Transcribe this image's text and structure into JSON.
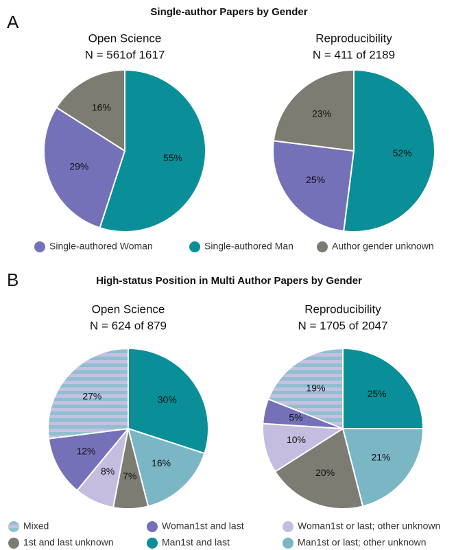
{
  "panels": [
    {
      "label": "A",
      "title": "Single-author Papers by Gender",
      "legend": [
        {
          "name": "Single-authored Woman",
          "color": "#7571b9"
        },
        {
          "name": "Single-authored Man",
          "color": "#0a8f98"
        },
        {
          "name": "Author gender unknown",
          "color": "#7d7c73"
        }
      ],
      "clockwise_order": [
        1,
        0,
        2
      ]
    },
    {
      "label": "B",
      "title": "High-status Position in Multi Author Papers by Gender",
      "legend": [
        {
          "name": "Mixed",
          "pattern": [
            "#8ec0cf",
            "#c6c0e2"
          ]
        },
        {
          "name": "Woman1st and last",
          "color": "#7571b9"
        },
        {
          "name": "Woman1st or last; other unknown",
          "color": "#c4bde0"
        },
        {
          "name": "1st and last unknown",
          "color": "#7d7c73"
        },
        {
          "name": "Man1st and last",
          "color": "#0a8f98"
        },
        {
          "name": "Man1st or last; other unknown",
          "color": "#7ab6c3"
        }
      ],
      "clockwise_order": [
        4,
        5,
        3,
        2,
        1,
        0
      ]
    }
  ],
  "chart_data": [
    {
      "type": "pie",
      "title": "Open Science",
      "subtitle": "N = 561of 1617",
      "values": [
        29,
        55,
        16
      ],
      "value_labels": [
        "29%",
        "55%",
        "16%"
      ]
    },
    {
      "type": "pie",
      "title": "Reproducibility",
      "subtitle": "N = 411 of 2189",
      "values": [
        25,
        52,
        23
      ],
      "value_labels": [
        "25%",
        "52%",
        "23%"
      ]
    },
    {
      "type": "pie",
      "title": "Open Science",
      "subtitle": "N = 624 of 879",
      "values": [
        27,
        12,
        8,
        7,
        30,
        16
      ],
      "value_labels": [
        "27%",
        "12%",
        "8%",
        "7%",
        "30%",
        "16%"
      ]
    },
    {
      "type": "pie",
      "title": "Reproducibility",
      "subtitle": "N = 1705 of 2047",
      "values": [
        19,
        5,
        10,
        20,
        25,
        21
      ],
      "value_labels": [
        "19%",
        "5%",
        "10%",
        "20%",
        "25%",
        "21%"
      ]
    }
  ]
}
